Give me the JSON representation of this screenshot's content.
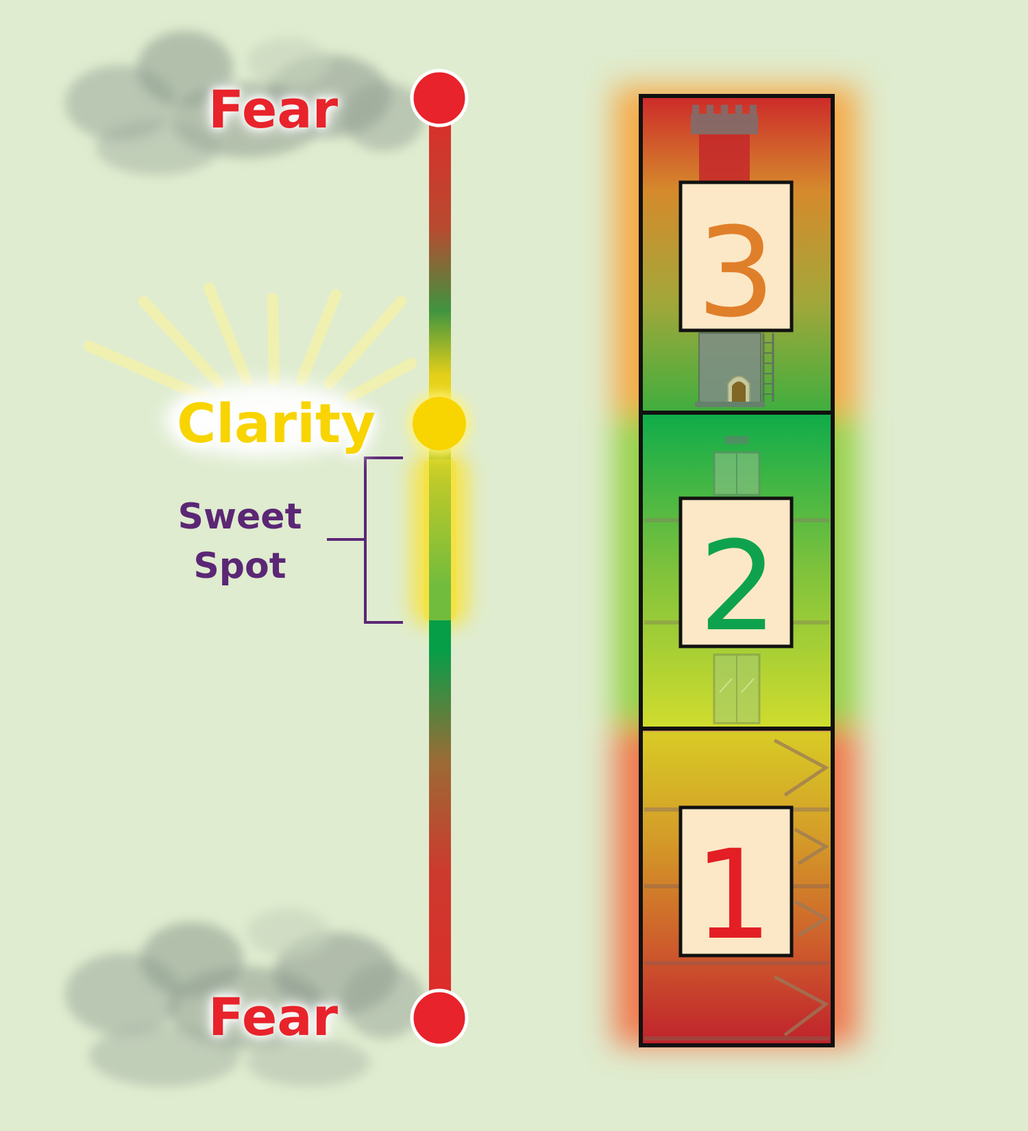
{
  "scale": {
    "top_label": "Fear",
    "middle_label": "Clarity",
    "range_label_line1": "Sweet",
    "range_label_line2": "Spot",
    "bottom_label": "Fear"
  },
  "building": {
    "floors": [
      {
        "label": "3",
        "color": "#e07f2a",
        "icon": "castle-tower-icon"
      },
      {
        "label": "2",
        "color": "#0fa24e",
        "icon": "elevator-icon"
      },
      {
        "label": "1",
        "color": "#e31e24",
        "icon": "staircase-icon"
      }
    ]
  },
  "colors": {
    "fear": "#e8232b",
    "clarity": "#f8d400",
    "sweet_spot": "#5b2775",
    "green": "#0aa64a",
    "background": "#dfeccf"
  }
}
